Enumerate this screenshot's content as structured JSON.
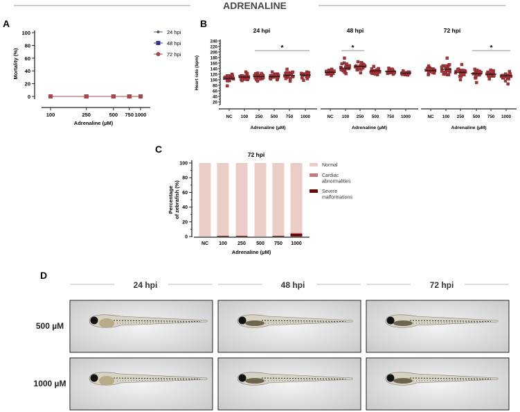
{
  "title": "ADRENALINE",
  "panel_labels": {
    "a": "A",
    "b": "B",
    "c": "C",
    "d": "D"
  },
  "colors": {
    "dot": "#a5373c",
    "line": "#333333",
    "normal": "#ebcdc7",
    "cardiac": "#c97a78",
    "severe": "#6b0a0a",
    "h24": "#555566",
    "h48": "#35308f",
    "h72": "#a5464c"
  },
  "chart_data": [
    {
      "id": "A",
      "type": "line",
      "xscale": "log",
      "xlabel": "Adrenaline (µM)",
      "ylabel": "Mortality (%)",
      "x": [
        100,
        250,
        500,
        750,
        1000
      ],
      "x_ticks": [
        "100",
        "250",
        "500",
        "750",
        "1000"
      ],
      "y_ticks": [
        "0",
        "20",
        "40",
        "60",
        "80",
        "100"
      ],
      "ylim": [
        0,
        100
      ],
      "legend": "top-right",
      "series": [
        {
          "name": "24 hpi",
          "values": [
            0,
            0,
            0,
            0,
            0
          ]
        },
        {
          "name": "48 hpi",
          "values": [
            0,
            0,
            0,
            0,
            0
          ]
        },
        {
          "name": "72 hpi",
          "values": [
            0,
            0,
            0,
            0,
            0
          ]
        }
      ]
    },
    {
      "id": "B",
      "type": "scatter",
      "ylabel": "Heart rate (bpm)",
      "xlabel": "Adrenaline (µM)",
      "ylim": [
        0,
        240
      ],
      "y_ticks": [
        "20",
        "40",
        "60",
        "80",
        "100",
        "120",
        "140",
        "160",
        "180",
        "200",
        "220",
        "240"
      ],
      "categories": [
        "NC",
        "100",
        "250",
        "500",
        "750",
        "1000"
      ],
      "panels": [
        {
          "title": "24 hpi",
          "means": [
            105,
            110,
            112,
            112,
            115,
            117
          ],
          "min": [
            78,
            97,
            95,
            100,
            95,
            98
          ],
          "max": [
            120,
            128,
            124,
            128,
            138,
            128
          ],
          "significance": {
            "from": 2,
            "to": 5,
            "label": "*"
          }
        },
        {
          "title": "48 hpi",
          "means": [
            127,
            142,
            148,
            132,
            130,
            124
          ],
          "min": [
            115,
            122,
            125,
            118,
            120,
            117
          ],
          "max": [
            138,
            178,
            165,
            148,
            142,
            132
          ],
          "significance": {
            "from": 1,
            "to": 2,
            "label": "*"
          }
        },
        {
          "title": "72 hpi",
          "means": [
            133,
            138,
            127,
            122,
            120,
            114
          ],
          "min": [
            118,
            118,
            100,
            90,
            103,
            85
          ],
          "max": [
            150,
            178,
            155,
            138,
            135,
            130
          ],
          "significance": {
            "from": 3,
            "to": 5,
            "label": "*"
          }
        }
      ]
    },
    {
      "id": "C",
      "type": "bar",
      "stacked": true,
      "title": "72 hpi",
      "xlabel": "Adrenaline (µM)",
      "ylabel": [
        "Percentage",
        "of zebrafish (%)"
      ],
      "categories": [
        "NC",
        "100",
        "250",
        "500",
        "750",
        "1000"
      ],
      "ylim": [
        0,
        100
      ],
      "y_ticks": [
        "0",
        "20",
        "40",
        "60",
        "80",
        "100"
      ],
      "legend": "right",
      "series": [
        {
          "name": "Severe malformations",
          "legend_lines": [
            "Severe",
            "malformations"
          ],
          "values": [
            0,
            1,
            1,
            0,
            1,
            4
          ]
        },
        {
          "name": "Cardiac abnormalities",
          "legend_lines": [
            "Cardiac",
            "abnormalities"
          ],
          "values": [
            0,
            0,
            0,
            0,
            0,
            1
          ]
        },
        {
          "name": "Normal",
          "legend_lines": [
            "Normal"
          ],
          "values": [
            100,
            99,
            99,
            100,
            99,
            95
          ]
        }
      ]
    }
  ],
  "panel_d": {
    "columns": [
      "24 hpi",
      "48 hpi",
      "72 hpi"
    ],
    "rows": [
      "500 µM",
      "1000 µM"
    ]
  }
}
